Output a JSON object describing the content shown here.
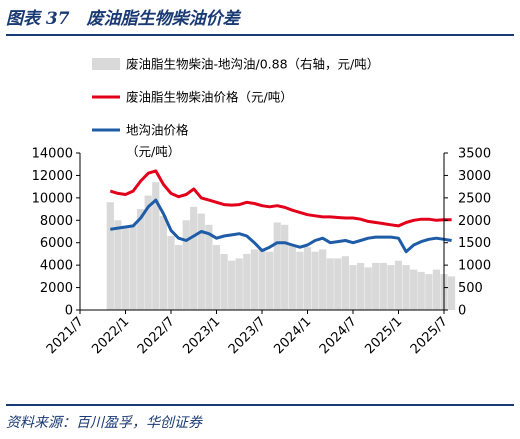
{
  "figure": {
    "title": "图表 37　废油脂生物柴油价差",
    "source": "资料来源：百川盈孚，华创证券"
  },
  "chart_data": {
    "type": "line",
    "x_ticks": [
      "2021/7",
      "2022/1",
      "2022/7",
      "2023/1",
      "2023/7",
      "2024/1",
      "2024/7",
      "2025/1",
      "2025/7"
    ],
    "y_left": {
      "ticks": [
        0,
        2000,
        4000,
        6000,
        8000,
        10000,
        12000,
        14000
      ],
      "lim": [
        0,
        14000
      ]
    },
    "y_right": {
      "ticks": [
        0,
        500,
        1000,
        1500,
        2000,
        2500,
        3000,
        3500
      ],
      "lim": [
        0,
        3500
      ]
    },
    "legend_placement": "top",
    "grid": false,
    "series": [
      {
        "name": "废油脂生物柴油-地沟油/0.88（右轴，元/吨）",
        "kind": "area",
        "axis": "right",
        "color": "#d9d9d9",
        "x": [
          "2021/11",
          "2021/12",
          "2022/1",
          "2022/2",
          "2022/3",
          "2022/4",
          "2022/5",
          "2022/6",
          "2022/7",
          "2022/8",
          "2022/9",
          "2022/10",
          "2022/11",
          "2022/12",
          "2023/1",
          "2023/2",
          "2023/3",
          "2023/4",
          "2023/5",
          "2023/6",
          "2023/7",
          "2023/8",
          "2023/9",
          "2023/10",
          "2023/11",
          "2023/12",
          "2024/1",
          "2024/2",
          "2024/3",
          "2024/4",
          "2024/5",
          "2024/6",
          "2024/7",
          "2024/8",
          "2024/9",
          "2024/10",
          "2024/11",
          "2024/12",
          "2025/1",
          "2025/2",
          "2025/3",
          "2025/4",
          "2025/5",
          "2025/6",
          "2025/7",
          "2025/8"
        ],
        "values": [
          2400,
          2000,
          1850,
          1900,
          2250,
          2550,
          2850,
          2100,
          1650,
          1450,
          2000,
          2300,
          2150,
          1900,
          1450,
          1250,
          1100,
          1150,
          1250,
          1350,
          1350,
          1300,
          1950,
          1900,
          1450,
          1300,
          1400,
          1300,
          1350,
          1150,
          1150,
          1200,
          1000,
          1050,
          950,
          1050,
          1050,
          1000,
          1100,
          1000,
          900,
          850,
          800,
          900,
          800,
          750
        ]
      },
      {
        "name": "废油脂生物柴油价格（元/吨）",
        "kind": "line",
        "axis": "left",
        "color": "#e3001b",
        "x": [
          "2021/11",
          "2021/12",
          "2022/1",
          "2022/2",
          "2022/3",
          "2022/4",
          "2022/5",
          "2022/6",
          "2022/7",
          "2022/8",
          "2022/9",
          "2022/10",
          "2022/11",
          "2022/12",
          "2023/1",
          "2023/2",
          "2023/3",
          "2023/4",
          "2023/5",
          "2023/6",
          "2023/7",
          "2023/8",
          "2023/9",
          "2023/10",
          "2023/11",
          "2023/12",
          "2024/1",
          "2024/2",
          "2024/3",
          "2024/4",
          "2024/5",
          "2024/6",
          "2024/7",
          "2024/8",
          "2024/9",
          "2024/10",
          "2024/11",
          "2024/12",
          "2025/1",
          "2025/2",
          "2025/3",
          "2025/4",
          "2025/5",
          "2025/6",
          "2025/7",
          "2025/8"
        ],
        "values": [
          10600,
          10400,
          10300,
          10600,
          11500,
          12200,
          12400,
          11200,
          10400,
          10100,
          10300,
          10800,
          10000,
          9800,
          9600,
          9400,
          9350,
          9400,
          9600,
          9500,
          9300,
          9200,
          9300,
          9150,
          8900,
          8700,
          8500,
          8400,
          8300,
          8300,
          8250,
          8200,
          8200,
          8100,
          7900,
          7800,
          7700,
          7600,
          7500,
          7800,
          8000,
          8100,
          8100,
          8000,
          8050,
          8050
        ]
      },
      {
        "name": "地沟油价格（元/吨）",
        "kind": "line",
        "axis": "left",
        "color": "#1f5ca8",
        "x": [
          "2021/11",
          "2021/12",
          "2022/1",
          "2022/2",
          "2022/3",
          "2022/4",
          "2022/5",
          "2022/6",
          "2022/7",
          "2022/8",
          "2022/9",
          "2022/10",
          "2022/11",
          "2022/12",
          "2023/1",
          "2023/2",
          "2023/3",
          "2023/4",
          "2023/5",
          "2023/6",
          "2023/7",
          "2023/8",
          "2023/9",
          "2023/10",
          "2023/11",
          "2023/12",
          "2024/1",
          "2024/2",
          "2024/3",
          "2024/4",
          "2024/5",
          "2024/6",
          "2024/7",
          "2024/8",
          "2024/9",
          "2024/10",
          "2024/11",
          "2024/12",
          "2025/1",
          "2025/2",
          "2025/3",
          "2025/4",
          "2025/5",
          "2025/6",
          "2025/7",
          "2025/8"
        ],
        "values": [
          7200,
          7300,
          7400,
          7500,
          8200,
          9200,
          9800,
          8600,
          7100,
          6400,
          6200,
          6600,
          7000,
          6800,
          6400,
          6600,
          6700,
          6800,
          6600,
          6000,
          5300,
          5600,
          6000,
          6000,
          5800,
          5600,
          5800,
          6200,
          6400,
          6000,
          6100,
          6200,
          6000,
          6200,
          6400,
          6500,
          6500,
          6500,
          6400,
          5200,
          5800,
          6100,
          6300,
          6400,
          6300,
          6200
        ]
      }
    ]
  }
}
